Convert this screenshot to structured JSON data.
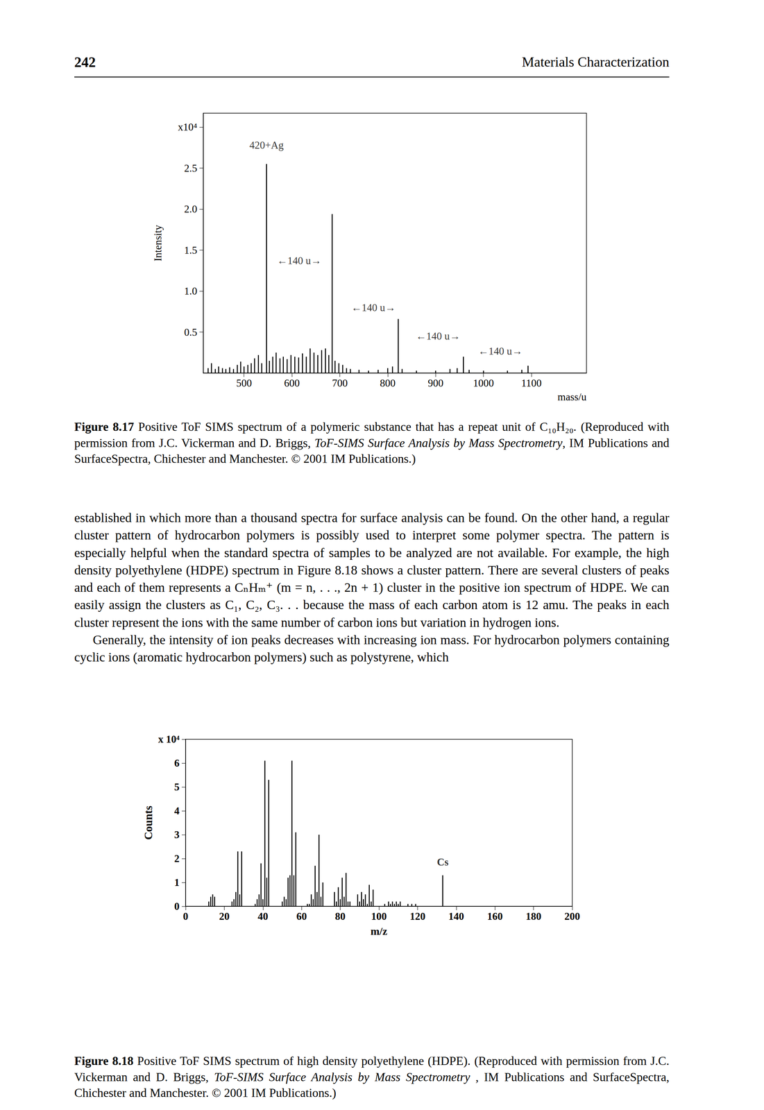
{
  "header": {
    "page_number": "242",
    "running_title": "Materials Characterization"
  },
  "chart_data": [
    {
      "type": "bar",
      "x_label": "mass/u",
      "y_label": "Intensity",
      "x": [
        425,
        432,
        440,
        447,
        455,
        462,
        470,
        478,
        486,
        493,
        500,
        508,
        515,
        522,
        530,
        537,
        547,
        553,
        560,
        567,
        575,
        582,
        590,
        598,
        606,
        614,
        622,
        630,
        638,
        646,
        654,
        662,
        670,
        677,
        684,
        690,
        698,
        706,
        714,
        722,
        740,
        760,
        780,
        800,
        810,
        822,
        830,
        860,
        900,
        930,
        945,
        958,
        970,
        1000,
        1050,
        1080,
        1093
      ],
      "values": [
        0.06,
        0.12,
        0.05,
        0.08,
        0.06,
        0.05,
        0.07,
        0.05,
        0.1,
        0.14,
        0.08,
        0.1,
        0.12,
        0.18,
        0.22,
        0.12,
        2.55,
        0.15,
        0.2,
        0.25,
        0.18,
        0.2,
        0.17,
        0.22,
        0.2,
        0.19,
        0.24,
        0.2,
        0.3,
        0.25,
        0.22,
        0.28,
        0.3,
        0.22,
        1.94,
        0.15,
        0.12,
        0.1,
        0.06,
        0.05,
        0.04,
        0.03,
        0.04,
        0.06,
        0.08,
        0.66,
        0.05,
        0.03,
        0.03,
        0.05,
        0.06,
        0.2,
        0.04,
        0.03,
        0.03,
        0.04,
        0.09
      ],
      "color": "#000000",
      "xlim": [
        415,
        1215
      ],
      "xticks": [
        500,
        600,
        700,
        800,
        900,
        1000,
        1100
      ],
      "ylim": [
        0,
        3.17
      ],
      "yticks": [
        0.5,
        {
          "value": 1,
          "label": "1.0"
        },
        1.5,
        {
          "value": 2,
          "label": "2.0"
        },
        2.5,
        {
          "value": 3,
          "label": "x10⁴"
        }
      ],
      "annotations": [
        {
          "text": "420+Ag",
          "x": 547,
          "y": 2.78
        },
        {
          "text": "←140 u→",
          "x": 615,
          "y": 1.37
        },
        {
          "text": "←140 u→",
          "x": 770,
          "y": 0.8
        },
        {
          "text": "←140 u→",
          "x": 905,
          "y": 0.45
        },
        {
          "text": "←140 u→",
          "x": 1035,
          "y": 0.27
        }
      ]
    },
    {
      "type": "bar",
      "x_label": "m/z",
      "y_label": "Counts",
      "x": [
        12,
        13,
        14,
        15,
        24,
        25,
        26,
        27,
        28,
        29,
        36,
        37,
        38,
        39,
        40,
        41,
        42,
        43,
        50,
        51,
        52,
        53,
        54,
        55,
        56,
        57,
        63,
        64,
        65,
        66,
        67,
        68,
        69,
        70,
        71,
        77,
        78,
        79,
        80,
        81,
        82,
        83,
        84,
        85,
        89,
        90,
        91,
        92,
        93,
        94,
        95,
        96,
        97,
        103,
        105,
        106,
        107,
        108,
        109,
        110,
        111,
        115,
        117,
        119,
        133
      ],
      "values": [
        0.2,
        0.4,
        0.5,
        0.4,
        0.2,
        0.3,
        0.6,
        2.3,
        0.5,
        2.3,
        0.1,
        0.3,
        0.5,
        1.8,
        0.3,
        6.1,
        1.2,
        5.3,
        0.2,
        0.4,
        0.3,
        1.2,
        1.3,
        6.1,
        1.3,
        3.1,
        0.1,
        0.1,
        0.5,
        0.3,
        1.7,
        0.6,
        3.0,
        0.4,
        1.0,
        0.6,
        0.2,
        0.8,
        0.3,
        1.2,
        0.4,
        1.4,
        0.2,
        0.2,
        0.5,
        0.2,
        0.6,
        0.3,
        0.5,
        0.1,
        0.9,
        0.2,
        0.7,
        0.1,
        0.2,
        0.1,
        0.2,
        0.1,
        0.2,
        0.1,
        0.2,
        0.1,
        0.1,
        0.1,
        1.3
      ],
      "color": "#000000",
      "xlim": [
        0,
        200
      ],
      "xticks": [
        0,
        20,
        40,
        60,
        80,
        100,
        120,
        140,
        160,
        180,
        200
      ],
      "ylim": [
        0,
        7
      ],
      "yticks": [
        0,
        1,
        2,
        3,
        4,
        5,
        6,
        {
          "value": 7,
          "label": "x 10⁴"
        }
      ],
      "annotations": [
        {
          "text": "Cs",
          "x": 133,
          "y": 1.85
        }
      ]
    }
  ],
  "captions": [
    {
      "label": "Figure 8.17",
      "text": "Positive ToF SIMS spectrum of a polymeric substance that has a repeat unit of C₁₀H₂₀. (Reproduced with permission from J.C. Vickerman and D. Briggs, ",
      "source_title": "ToF-SIMS Surface Analysis by Mass Spectrometry",
      "text_after": ", IM Publications and SurfaceSpectra, Chichester and Manchester. © 2001 IM Publications.)"
    },
    {
      "label": "Figure 8.18",
      "text": "Positive ToF SIMS spectrum of high density polyethylene (HDPE). (Reproduced with permission from J.C. Vickerman and D. Briggs, ",
      "source_title": "ToF-SIMS Surface Analysis by Mass Spectrometry",
      "text_after": " , IM Publications and SurfaceSpectra, Chichester and Manchester. © 2001 IM Publications.)"
    }
  ],
  "paragraphs": [
    {
      "indent": false,
      "text": "established in which more than a thousand spectra for surface analysis can be found. On the other hand, a regular cluster pattern of hydrocarbon polymers is possibly used to interpret some polymer spectra. The pattern is especially helpful when the standard spectra of samples to be analyzed are not available. For example, the high density polyethylene (HDPE) spectrum in Figure 8.18 shows a cluster pattern. There are several clusters of peaks and each of them represents a CₙHₘ⁺ (m = n, . . ., 2n + 1) cluster in the positive ion spectrum of HDPE. We can easily assign the clusters as C₁, C₂, C₃. . . because the mass of each carbon atom is 12 amu. The peaks in each cluster represent the ions with the same number of carbon ions but variation in hydrogen ions."
    },
    {
      "indent": true,
      "text": "Generally, the intensity of ion peaks decreases with increasing ion mass. For hydrocarbon polymers containing cyclic ions (aromatic hydrocarbon polymers) such as polystyrene, which"
    }
  ]
}
